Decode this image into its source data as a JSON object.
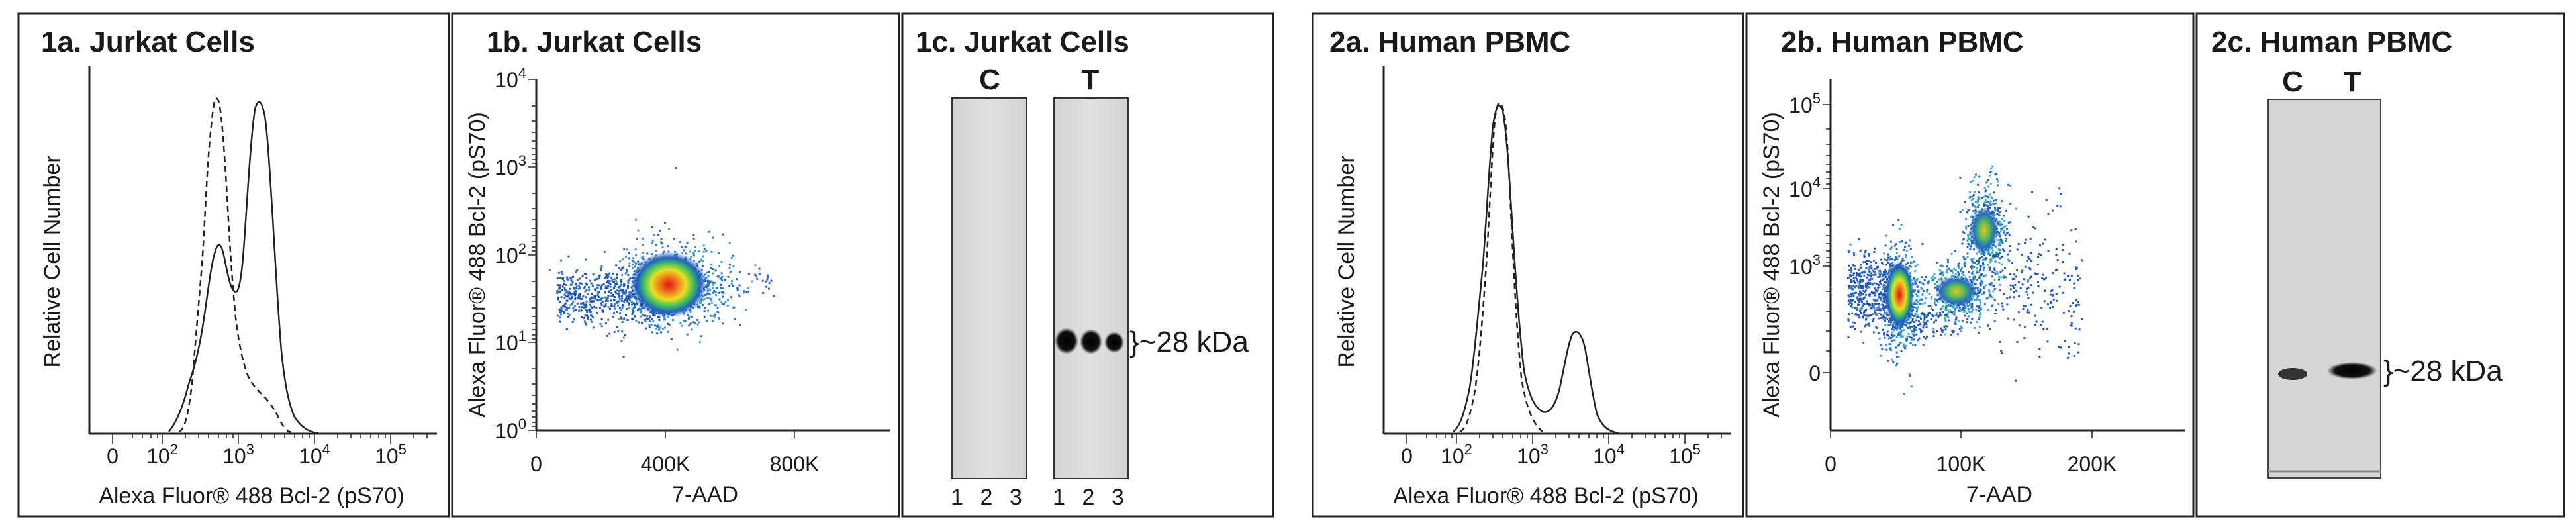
{
  "panels": [
    {
      "id": "1a",
      "title": "1a.  Jurkat Cells"
    },
    {
      "id": "1b",
      "title": "1b.  Jurkat Cells"
    },
    {
      "id": "1c",
      "title": "1c. Jurkat Cells"
    },
    {
      "id": "2a",
      "title": "2a.  Human PBMC"
    },
    {
      "id": "2b",
      "title": "2b.  Human PBMC"
    },
    {
      "id": "2c",
      "title": "2c. Human PBMC"
    }
  ],
  "blots": {
    "b1c": {
      "lane_groups": [
        "C",
        "T"
      ],
      "lane_numbers": [
        "1",
        "2",
        "3"
      ],
      "band_label": "}~28 kDa"
    },
    "b2c": {
      "lane_groups": [
        "C",
        "T"
      ],
      "band_label": "}~28 kDa"
    }
  },
  "chart_data": [
    {
      "id": "1a",
      "type": "line",
      "title": "1a.  Jurkat Cells",
      "xlabel": "Alexa Fluor® 488 Bcl-2 (pS70)",
      "ylabel": "Relative Cell Number",
      "x_scale": "biexponential",
      "x_ticks": [
        "0",
        "10^2",
        "10^3",
        "10^4",
        "10^5"
      ],
      "series": [
        {
          "style": "dashed",
          "x": [
            100,
            200,
            300,
            400,
            500,
            600,
            800,
            1000,
            1500
          ],
          "y": [
            0.0,
            0.25,
            0.6,
            0.95,
            1.0,
            0.7,
            0.3,
            0.08,
            0.0
          ]
        },
        {
          "style": "solid",
          "x": [
            150,
            300,
            500,
            700,
            900,
            1200,
            1500,
            1800,
            2200,
            3000
          ],
          "y": [
            0.0,
            0.2,
            0.4,
            0.5,
            0.35,
            0.7,
            1.0,
            0.8,
            0.3,
            0.0
          ]
        }
      ]
    },
    {
      "id": "1b",
      "type": "scatter",
      "title": "1b.  Jurkat Cells",
      "xlabel": "7-AAD",
      "ylabel": "Alexa Fluor® 488 Bcl-2 (pS70)",
      "x_ticks": [
        "0",
        "400K",
        "800K"
      ],
      "y_ticks": [
        "10^0",
        "10^1",
        "10^2",
        "10^3",
        "10^4"
      ],
      "xlim": [
        0,
        1100000
      ],
      "ylim": [
        1,
        10000
      ],
      "y_scale": "log",
      "clusters": [
        {
          "x": 390000,
          "y": 45,
          "density": "high"
        },
        {
          "x": 180000,
          "y": 25,
          "density": "low"
        }
      ]
    },
    {
      "id": "2a",
      "type": "line",
      "title": "2a.  Human PBMC",
      "xlabel": "Alexa Fluor® 488 Bcl-2 (pS70)",
      "ylabel": "Relative Cell Number",
      "x_scale": "biexponential",
      "x_ticks": [
        "0",
        "10^2",
        "10^3",
        "10^4",
        "10^5"
      ],
      "series": [
        {
          "style": "dashed",
          "x": [
            100,
            200,
            300,
            400,
            500,
            700,
            1000
          ],
          "y": [
            0.0,
            0.4,
            0.9,
            1.0,
            0.5,
            0.05,
            0.0
          ]
        },
        {
          "style": "solid",
          "x": [
            100,
            200,
            300,
            450,
            600,
            900,
            1500,
            2500,
            3000,
            4000,
            6000
          ],
          "y": [
            0.0,
            0.35,
            0.85,
            0.95,
            0.4,
            0.1,
            0.12,
            0.32,
            0.36,
            0.2,
            0.0
          ]
        }
      ]
    },
    {
      "id": "2b",
      "type": "scatter",
      "title": "2b.  Human PBMC",
      "xlabel": "7-AAD",
      "ylabel": "Alexa Fluor® 488 Bcl-2 (pS70)",
      "x_ticks": [
        "0",
        "100K",
        "200K"
      ],
      "y_ticks": [
        "0",
        "10^3",
        "10^4",
        "10^5"
      ],
      "xlim": [
        0,
        260000
      ],
      "y_scale": "biexponential",
      "clusters": [
        {
          "x": 50000,
          "y": 600,
          "density": "high"
        },
        {
          "x": 100000,
          "y": 800,
          "density": "medium"
        },
        {
          "x": 118000,
          "y": 3000,
          "density": "medium"
        }
      ]
    }
  ]
}
